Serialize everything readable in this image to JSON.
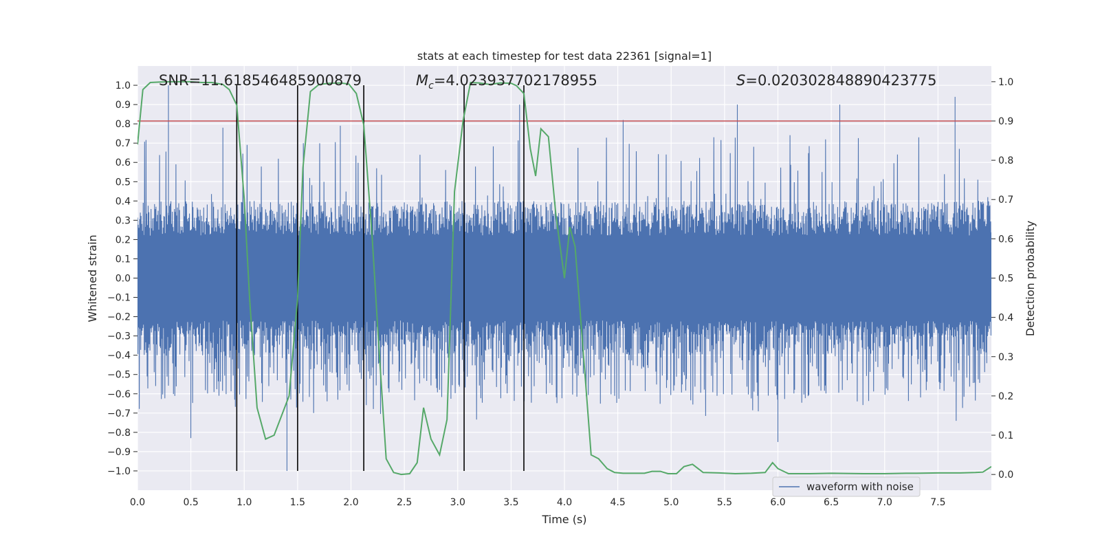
{
  "chart_data": {
    "type": "line",
    "title": "stats at each timestep for test data 22361 [signal=1]",
    "xlabel": "Time (s)",
    "ylabel_left": "Whitened strain",
    "ylabel_right": "Detection probability",
    "xlim": [
      0.0,
      8.0
    ],
    "ylim_left": [
      -1.1,
      1.1
    ],
    "ylim_right": [
      -0.04,
      1.04
    ],
    "x_ticks": [
      "0.0",
      "0.5",
      "1.0",
      "1.5",
      "2.0",
      "2.5",
      "3.0",
      "3.5",
      "4.0",
      "4.5",
      "5.0",
      "5.5",
      "6.0",
      "6.5",
      "7.0",
      "7.5"
    ],
    "y_left_ticks": [
      "1.0",
      "0.9",
      "0.8",
      "0.7",
      "0.6",
      "0.5",
      "0.4",
      "0.3",
      "0.2",
      "0.1",
      "0.0",
      "-0.1",
      "-0.2",
      "-0.3",
      "-0.4",
      "-0.5",
      "-0.6",
      "-0.7",
      "-0.8",
      "-0.9",
      "-1.0"
    ],
    "y_right_ticks": [
      "1.0",
      "0.9",
      "0.8",
      "0.7",
      "0.6",
      "0.5",
      "0.4",
      "0.3",
      "0.2",
      "0.1",
      "0.0"
    ],
    "annotations": {
      "snr": "SNR=11.618546485900879",
      "mc_symbol": "M",
      "mc_sub": "c",
      "mc_value": "=4.023937702178955",
      "s_symbol": "S",
      "s_value": "=0.020302848890423775"
    },
    "threshold": {
      "value": 0.9,
      "axis": "right",
      "color": "#c44e52"
    },
    "vertical_lines_x": [
      0.93,
      1.5,
      2.12,
      3.06,
      3.62
    ],
    "legend": {
      "label": "waveform with noise",
      "placement": "lower-right"
    },
    "series": [
      {
        "name": "waveform with noise",
        "color": "#4c72b0",
        "axis": "left",
        "description": "noisy whitened strain, dense band roughly +/-0.4 with spikes to about +/-1.0",
        "band_envelope": 0.4,
        "spikes": [
          {
            "x": 0.29,
            "y": 1.0
          },
          {
            "x": 0.8,
            "y": 0.78
          },
          {
            "x": 1.4,
            "y": -1.0
          },
          {
            "x": 1.9,
            "y": 0.79
          },
          {
            "x": 3.58,
            "y": 0.9
          },
          {
            "x": 4.55,
            "y": 0.82
          },
          {
            "x": 5.62,
            "y": 0.9
          },
          {
            "x": 6.58,
            "y": 0.9
          },
          {
            "x": 7.66,
            "y": 0.94
          },
          {
            "x": 6.0,
            "y": -0.85
          },
          {
            "x": 0.5,
            "y": -0.83
          }
        ]
      },
      {
        "name": "detection probability",
        "color": "#55a868",
        "axis": "right",
        "x": [
          0.0,
          0.05,
          0.12,
          0.2,
          0.3,
          0.4,
          0.5,
          0.6,
          0.7,
          0.8,
          0.86,
          0.93,
          1.0,
          1.05,
          1.12,
          1.2,
          1.28,
          1.35,
          1.42,
          1.5,
          1.55,
          1.62,
          1.7,
          1.8,
          1.9,
          1.98,
          2.05,
          2.12,
          2.2,
          2.26,
          2.33,
          2.4,
          2.47,
          2.55,
          2.62,
          2.68,
          2.75,
          2.83,
          2.9,
          2.97,
          3.05,
          3.12,
          3.2,
          3.3,
          3.4,
          3.5,
          3.55,
          3.62,
          3.68,
          3.73,
          3.78,
          3.85,
          3.92,
          4.0,
          4.05,
          4.1,
          4.18,
          4.25,
          4.32,
          4.4,
          4.47,
          4.55,
          4.65,
          4.75,
          4.82,
          4.9,
          4.97,
          5.05,
          5.12,
          5.2,
          5.3,
          5.45,
          5.6,
          5.75,
          5.88,
          5.95,
          6.0,
          6.1,
          6.3,
          6.5,
          6.8,
          7.0,
          7.2,
          7.3,
          7.5,
          7.7,
          7.85,
          7.92,
          8.0
        ],
        "values": [
          0.84,
          0.98,
          0.998,
          0.999,
          1.0,
          1.0,
          1.0,
          0.998,
          0.998,
          0.993,
          0.98,
          0.94,
          0.7,
          0.45,
          0.17,
          0.09,
          0.1,
          0.15,
          0.2,
          0.45,
          0.78,
          0.975,
          0.993,
          0.996,
          0.997,
          0.994,
          0.97,
          0.89,
          0.6,
          0.33,
          0.04,
          0.005,
          0.0,
          0.002,
          0.03,
          0.17,
          0.09,
          0.05,
          0.14,
          0.72,
          0.9,
          0.998,
          0.997,
          0.993,
          0.997,
          0.996,
          0.99,
          0.97,
          0.83,
          0.76,
          0.88,
          0.86,
          0.66,
          0.5,
          0.63,
          0.58,
          0.3,
          0.05,
          0.04,
          0.015,
          0.005,
          0.003,
          0.003,
          0.003,
          0.008,
          0.008,
          0.002,
          0.002,
          0.02,
          0.026,
          0.005,
          0.004,
          0.002,
          0.003,
          0.005,
          0.03,
          0.015,
          0.002,
          0.002,
          0.003,
          0.002,
          0.002,
          0.003,
          0.003,
          0.004,
          0.004,
          0.005,
          0.006,
          0.02
        ]
      }
    ]
  }
}
